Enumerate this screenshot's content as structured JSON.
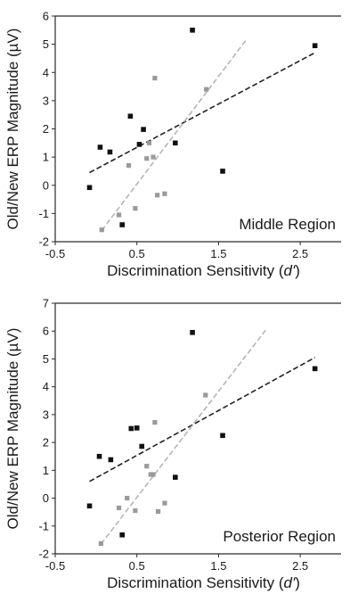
{
  "colors": {
    "black_series": "#111111",
    "gray_series": "#9a9a9a",
    "frame": "#2a2a2a"
  },
  "chart_data": [
    {
      "type": "scatter",
      "title": "",
      "region_label": "Middle Region",
      "ylabel": "Old/New ERP Magnitude",
      "ylabel_unit": "µV",
      "xlabel": "Discrimination Sensitivity",
      "xlabel_symbol": "d'",
      "xlim": [
        -0.5,
        3.0
      ],
      "ylim": [
        -2,
        6
      ],
      "xticks": [
        "-0.5",
        "0.5",
        "1.5",
        "2.5"
      ],
      "yticks": [
        "-2",
        "-1",
        "0",
        "1",
        "2",
        "3",
        "4",
        "5",
        "6"
      ],
      "grid": false,
      "series": [
        {
          "color": "#111111",
          "points": [
            [
              -0.08,
              -0.08
            ],
            [
              0.05,
              1.35
            ],
            [
              0.17,
              1.18
            ],
            [
              0.32,
              -1.4
            ],
            [
              0.42,
              2.45
            ],
            [
              0.53,
              1.45
            ],
            [
              0.58,
              1.98
            ],
            [
              0.97,
              1.5
            ],
            [
              1.18,
              5.5
            ],
            [
              1.55,
              0.5
            ],
            [
              2.68,
              4.95
            ]
          ],
          "trend": {
            "style": "dashed",
            "x": [
              -0.08,
              2.68
            ],
            "y": [
              0.45,
              4.7
            ]
          }
        },
        {
          "color": "#9a9a9a",
          "points": [
            [
              0.07,
              -1.58
            ],
            [
              0.28,
              -1.05
            ],
            [
              0.4,
              0.7
            ],
            [
              0.48,
              -0.82
            ],
            [
              0.62,
              0.95
            ],
            [
              0.65,
              1.5
            ],
            [
              0.7,
              1.0
            ],
            [
              0.72,
              3.8
            ],
            [
              0.75,
              -0.35
            ],
            [
              0.84,
              -0.3
            ],
            [
              1.35,
              3.4
            ]
          ],
          "trend": {
            "style": "dashed",
            "x": [
              0.07,
              1.85
            ],
            "y": [
              -1.6,
              5.2
            ]
          }
        }
      ]
    },
    {
      "type": "scatter",
      "title": "",
      "region_label": "Posterior Region",
      "ylabel": "Old/New ERP Magnitude",
      "ylabel_unit": "µV",
      "xlabel": "Discrimination Sensitivity",
      "xlabel_symbol": "d'",
      "xlim": [
        -0.5,
        3.0
      ],
      "ylim": [
        -2,
        7
      ],
      "xticks": [
        "-0.5",
        "0.5",
        "1.5",
        "2.5"
      ],
      "yticks": [
        "-2",
        "-1",
        "0",
        "1",
        "2",
        "3",
        "4",
        "5",
        "6",
        "7"
      ],
      "grid": false,
      "series": [
        {
          "color": "#111111",
          "points": [
            [
              -0.08,
              -0.28
            ],
            [
              0.04,
              1.5
            ],
            [
              0.18,
              1.38
            ],
            [
              0.32,
              -1.32
            ],
            [
              0.43,
              2.5
            ],
            [
              0.5,
              2.52
            ],
            [
              0.56,
              1.86
            ],
            [
              0.97,
              0.75
            ],
            [
              1.18,
              5.95
            ],
            [
              1.55,
              2.25
            ],
            [
              2.68,
              4.65
            ]
          ],
          "trend": {
            "style": "dashed",
            "x": [
              -0.08,
              2.68
            ],
            "y": [
              0.6,
              5.05
            ]
          }
        },
        {
          "color": "#9a9a9a",
          "points": [
            [
              0.06,
              -1.63
            ],
            [
              0.28,
              -0.35
            ],
            [
              0.38,
              0.0
            ],
            [
              0.48,
              -0.45
            ],
            [
              0.62,
              1.15
            ],
            [
              0.67,
              0.85
            ],
            [
              0.7,
              0.85
            ],
            [
              0.72,
              2.72
            ],
            [
              0.76,
              -0.48
            ],
            [
              0.84,
              -0.18
            ],
            [
              1.34,
              3.7
            ]
          ],
          "trend": {
            "style": "dashed",
            "x": [
              0.06,
              2.08
            ],
            "y": [
              -1.65,
              6.05
            ]
          }
        }
      ]
    }
  ]
}
